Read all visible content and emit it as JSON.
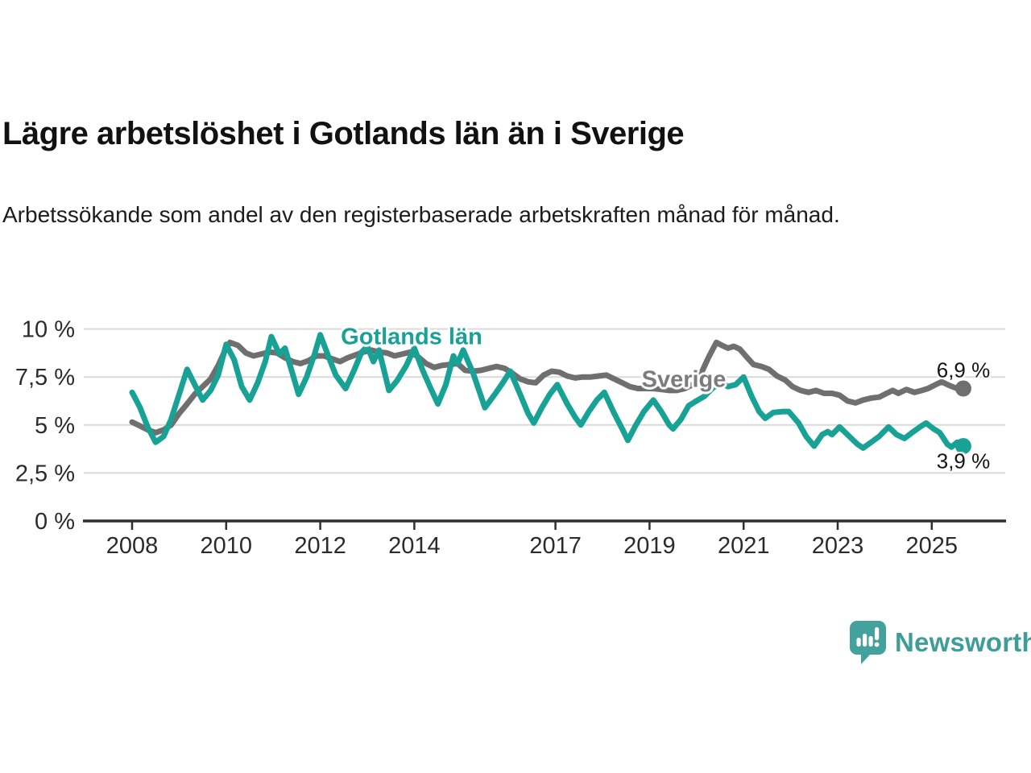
{
  "header": {
    "title": "Lägre arbetslöshet i Gotlands län än i Sverige",
    "subtitle": "Arbetssökande som andel av den registerbaserade arbetskraften månad för månad."
  },
  "branding": {
    "logo_text": "Newsworthy",
    "logo_text_color": "#3F9D98",
    "logo_icon_color": "#43A29D"
  },
  "chart_data": {
    "type": "line",
    "title": "Lägre arbetslöshet i Gotlands län än i Sverige",
    "xlabel": "",
    "ylabel": "",
    "grid": true,
    "x_range": [
      2008,
      2025.67
    ],
    "y_range": [
      0,
      10
    ],
    "y_axis": {
      "values": [
        0,
        2.5,
        5,
        7.5,
        10
      ],
      "labels": [
        "0 %",
        "2,5 %",
        "5 %",
        "7,5 %",
        "10 %"
      ]
    },
    "x_axis": {
      "values": [
        2008,
        2010,
        2012,
        2014,
        2017,
        2019,
        2021,
        2023,
        2025
      ],
      "labels": [
        "2008",
        "2010",
        "2012",
        "2014",
        "2017",
        "2019",
        "2021",
        "2023",
        "2025"
      ]
    },
    "colors": {
      "gotland": "#18A296",
      "sverige": "#6F6F6F",
      "sverige_label": "#7C7C7C",
      "gridline": "#DADADA",
      "axis": "#2E2E2E",
      "tick_text": "#2B2B2B"
    },
    "series": [
      {
        "name": "Sverige",
        "color": "#6F6F6F",
        "end_value": 6.9,
        "end_label": "6,9 %",
        "points": [
          [
            2008.0,
            5.15
          ],
          [
            2008.17,
            4.95
          ],
          [
            2008.33,
            4.75
          ],
          [
            2008.5,
            4.6
          ],
          [
            2008.67,
            4.75
          ],
          [
            2008.83,
            5.0
          ],
          [
            2009.0,
            5.6
          ],
          [
            2009.17,
            6.1
          ],
          [
            2009.33,
            6.6
          ],
          [
            2009.5,
            7.0
          ],
          [
            2009.67,
            7.4
          ],
          [
            2009.83,
            8.1
          ],
          [
            2010.0,
            9.0
          ],
          [
            2010.08,
            9.3
          ],
          [
            2010.25,
            9.15
          ],
          [
            2010.42,
            8.75
          ],
          [
            2010.58,
            8.6
          ],
          [
            2010.75,
            8.7
          ],
          [
            2010.92,
            8.8
          ],
          [
            2011.08,
            8.75
          ],
          [
            2011.25,
            8.5
          ],
          [
            2011.42,
            8.3
          ],
          [
            2011.58,
            8.2
          ],
          [
            2011.75,
            8.35
          ],
          [
            2011.92,
            8.6
          ],
          [
            2012.08,
            8.6
          ],
          [
            2012.25,
            8.45
          ],
          [
            2012.42,
            8.3
          ],
          [
            2012.58,
            8.5
          ],
          [
            2012.75,
            8.65
          ],
          [
            2012.92,
            8.8
          ],
          [
            2013.08,
            8.9
          ],
          [
            2013.25,
            8.8
          ],
          [
            2013.42,
            8.75
          ],
          [
            2013.58,
            8.6
          ],
          [
            2013.75,
            8.7
          ],
          [
            2013.92,
            8.8
          ],
          [
            2014.08,
            8.55
          ],
          [
            2014.25,
            8.2
          ],
          [
            2014.42,
            8.0
          ],
          [
            2014.58,
            8.1
          ],
          [
            2014.75,
            8.15
          ],
          [
            2014.92,
            8.2
          ],
          [
            2015.08,
            7.85
          ],
          [
            2015.25,
            7.8
          ],
          [
            2015.42,
            7.85
          ],
          [
            2015.58,
            7.95
          ],
          [
            2015.75,
            8.05
          ],
          [
            2015.92,
            7.95
          ],
          [
            2016.08,
            7.7
          ],
          [
            2016.25,
            7.4
          ],
          [
            2016.42,
            7.25
          ],
          [
            2016.58,
            7.2
          ],
          [
            2016.75,
            7.6
          ],
          [
            2016.92,
            7.8
          ],
          [
            2017.08,
            7.75
          ],
          [
            2017.25,
            7.55
          ],
          [
            2017.42,
            7.45
          ],
          [
            2017.58,
            7.5
          ],
          [
            2017.75,
            7.5
          ],
          [
            2017.92,
            7.55
          ],
          [
            2018.08,
            7.6
          ],
          [
            2018.25,
            7.4
          ],
          [
            2018.42,
            7.2
          ],
          [
            2018.58,
            7.0
          ],
          [
            2018.75,
            6.9
          ],
          [
            2018.92,
            6.9
          ],
          [
            2019.08,
            6.9
          ],
          [
            2019.25,
            6.85
          ],
          [
            2019.42,
            6.8
          ],
          [
            2019.58,
            6.8
          ],
          [
            2019.75,
            6.9
          ],
          [
            2019.92,
            7.1
          ],
          [
            2020.08,
            7.6
          ],
          [
            2020.25,
            8.5
          ],
          [
            2020.42,
            9.3
          ],
          [
            2020.54,
            9.15
          ],
          [
            2020.67,
            9.0
          ],
          [
            2020.79,
            9.1
          ],
          [
            2020.92,
            8.95
          ],
          [
            2021.08,
            8.5
          ],
          [
            2021.21,
            8.15
          ],
          [
            2021.38,
            8.05
          ],
          [
            2021.54,
            7.9
          ],
          [
            2021.71,
            7.55
          ],
          [
            2021.88,
            7.35
          ],
          [
            2022.04,
            7.0
          ],
          [
            2022.21,
            6.8
          ],
          [
            2022.38,
            6.7
          ],
          [
            2022.54,
            6.8
          ],
          [
            2022.71,
            6.65
          ],
          [
            2022.88,
            6.65
          ],
          [
            2023.04,
            6.55
          ],
          [
            2023.21,
            6.25
          ],
          [
            2023.38,
            6.15
          ],
          [
            2023.54,
            6.3
          ],
          [
            2023.71,
            6.4
          ],
          [
            2023.88,
            6.45
          ],
          [
            2024.04,
            6.65
          ],
          [
            2024.17,
            6.8
          ],
          [
            2024.29,
            6.65
          ],
          [
            2024.46,
            6.85
          ],
          [
            2024.63,
            6.7
          ],
          [
            2024.79,
            6.8
          ],
          [
            2024.92,
            6.9
          ],
          [
            2025.08,
            7.1
          ],
          [
            2025.21,
            7.25
          ],
          [
            2025.38,
            7.05
          ],
          [
            2025.54,
            6.9
          ],
          [
            2025.67,
            6.9
          ]
        ]
      },
      {
        "name": "Gotlands län",
        "color": "#18A296",
        "end_value": 3.9,
        "end_label": "3,9 %",
        "points": [
          [
            2008.0,
            6.7
          ],
          [
            2008.17,
            5.9
          ],
          [
            2008.33,
            4.9
          ],
          [
            2008.5,
            4.1
          ],
          [
            2008.67,
            4.4
          ],
          [
            2008.83,
            5.3
          ],
          [
            2009.0,
            6.6
          ],
          [
            2009.17,
            7.9
          ],
          [
            2009.33,
            7.1
          ],
          [
            2009.5,
            6.3
          ],
          [
            2009.67,
            6.8
          ],
          [
            2009.83,
            7.6
          ],
          [
            2010.0,
            9.2
          ],
          [
            2010.17,
            8.4
          ],
          [
            2010.33,
            7.0
          ],
          [
            2010.5,
            6.3
          ],
          [
            2010.67,
            7.2
          ],
          [
            2010.83,
            8.3
          ],
          [
            2010.96,
            9.6
          ],
          [
            2011.13,
            8.7
          ],
          [
            2011.25,
            9.0
          ],
          [
            2011.42,
            7.6
          ],
          [
            2011.54,
            6.6
          ],
          [
            2011.71,
            7.5
          ],
          [
            2011.88,
            8.7
          ],
          [
            2012.0,
            9.7
          ],
          [
            2012.17,
            8.6
          ],
          [
            2012.33,
            7.6
          ],
          [
            2012.54,
            6.9
          ],
          [
            2012.71,
            7.8
          ],
          [
            2012.88,
            8.8
          ],
          [
            2013.0,
            9.1
          ],
          [
            2013.13,
            8.3
          ],
          [
            2013.25,
            8.9
          ],
          [
            2013.46,
            6.8
          ],
          [
            2013.63,
            7.3
          ],
          [
            2013.83,
            8.1
          ],
          [
            2014.0,
            9.0
          ],
          [
            2014.17,
            7.9
          ],
          [
            2014.33,
            7.0
          ],
          [
            2014.5,
            6.1
          ],
          [
            2014.67,
            7.1
          ],
          [
            2014.83,
            8.6
          ],
          [
            2014.92,
            8.2
          ],
          [
            2015.04,
            8.9
          ],
          [
            2015.25,
            7.7
          ],
          [
            2015.5,
            5.9
          ],
          [
            2015.71,
            6.6
          ],
          [
            2015.88,
            7.2
          ],
          [
            2016.04,
            7.8
          ],
          [
            2016.25,
            6.6
          ],
          [
            2016.42,
            5.6
          ],
          [
            2016.54,
            5.1
          ],
          [
            2016.71,
            5.9
          ],
          [
            2016.88,
            6.6
          ],
          [
            2017.04,
            7.1
          ],
          [
            2017.25,
            6.1
          ],
          [
            2017.42,
            5.4
          ],
          [
            2017.54,
            5.0
          ],
          [
            2017.71,
            5.7
          ],
          [
            2017.88,
            6.3
          ],
          [
            2018.04,
            6.7
          ],
          [
            2018.25,
            5.6
          ],
          [
            2018.42,
            4.8
          ],
          [
            2018.54,
            4.2
          ],
          [
            2018.71,
            5.0
          ],
          [
            2018.88,
            5.7
          ],
          [
            2019.08,
            6.3
          ],
          [
            2019.25,
            5.7
          ],
          [
            2019.42,
            5.0
          ],
          [
            2019.5,
            4.8
          ],
          [
            2019.67,
            5.3
          ],
          [
            2019.83,
            6.0
          ],
          [
            2019.96,
            6.2
          ],
          [
            2020.17,
            6.5
          ],
          [
            2020.33,
            6.9
          ],
          [
            2020.5,
            7.2
          ],
          [
            2020.67,
            7.0
          ],
          [
            2020.83,
            7.1
          ],
          [
            2021.0,
            7.5
          ],
          [
            2021.17,
            6.5
          ],
          [
            2021.33,
            5.7
          ],
          [
            2021.46,
            5.35
          ],
          [
            2021.63,
            5.65
          ],
          [
            2021.83,
            5.7
          ],
          [
            2021.96,
            5.7
          ],
          [
            2022.17,
            5.1
          ],
          [
            2022.33,
            4.4
          ],
          [
            2022.5,
            3.9
          ],
          [
            2022.67,
            4.5
          ],
          [
            2022.79,
            4.65
          ],
          [
            2022.88,
            4.5
          ],
          [
            2023.04,
            4.9
          ],
          [
            2023.25,
            4.4
          ],
          [
            2023.42,
            4.0
          ],
          [
            2023.54,
            3.8
          ],
          [
            2023.71,
            4.1
          ],
          [
            2023.88,
            4.4
          ],
          [
            2024.08,
            4.9
          ],
          [
            2024.25,
            4.5
          ],
          [
            2024.42,
            4.3
          ],
          [
            2024.58,
            4.6
          ],
          [
            2024.75,
            4.9
          ],
          [
            2024.88,
            5.1
          ],
          [
            2025.04,
            4.8
          ],
          [
            2025.17,
            4.6
          ],
          [
            2025.33,
            4.0
          ],
          [
            2025.42,
            3.85
          ],
          [
            2025.54,
            4.1
          ],
          [
            2025.67,
            3.9
          ]
        ]
      }
    ],
    "annotations": {
      "gotland_label": "Gotlands län",
      "sverige_label": "Sverige"
    },
    "legend_position": "inline-labels"
  }
}
